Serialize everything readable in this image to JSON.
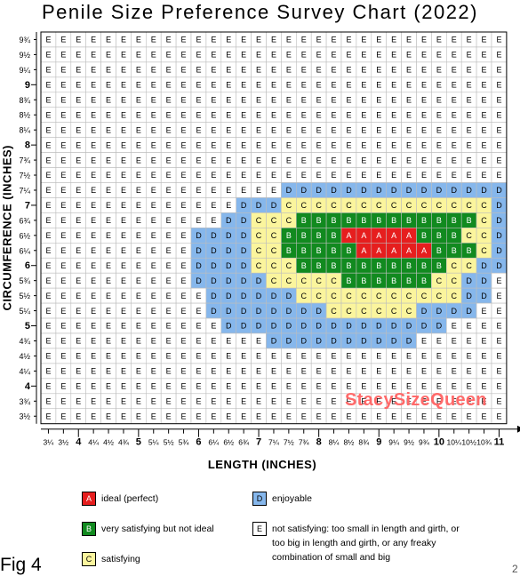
{
  "figure_label": "Fig 4",
  "page_number": "2",
  "watermark": "StacySizeQueen",
  "chart_data": {
    "type": "heatmap",
    "title": "Penile Size Preference Survey Chart (2022)",
    "xlabel": "LENGTH  (INCHES)",
    "ylabel": "CIRCUMFERENCE (INCHES)",
    "x_ticks": [
      "3¼",
      "3½",
      "4",
      "4¼",
      "4½",
      "4¾",
      "5",
      "5¼",
      "5½",
      "5¾",
      "6",
      "6¼",
      "6½",
      "6¾",
      "7",
      "7¼",
      "7½",
      "7¾",
      "8",
      "8¼",
      "8½",
      "8¾",
      "9",
      "9¼",
      "9½",
      "9¾",
      "10",
      "10¼",
      "10½",
      "10¾",
      "11"
    ],
    "y_ticks": [
      "9¾",
      "9½",
      "9¼",
      "9",
      "8¾",
      "8½",
      "8¼",
      "8",
      "7¾",
      "7½",
      "7¼",
      "7",
      "6¾",
      "6½",
      "6¼",
      "6",
      "5¾",
      "5½",
      "5¼",
      "5",
      "4¾",
      "4½",
      "4¼",
      "4",
      "3¾",
      "3½"
    ],
    "grid_rows": [
      "EEEEEEEEEEEEEEEEEEEEEEEEEEEEEEE",
      "EEEEEEEEEEEEEEEEEEEEEEEEEEEEEEE",
      "EEEEEEEEEEEEEEEEEEEEEEEEEEEEEEE",
      "EEEEEEEEEEEEEEEEEEEEEEEEEEEEEEE",
      "EEEEEEEEEEEEEEEEEEEEEEEEEEEEEEE",
      "EEEEEEEEEEEEEEEEEEEEEEEEEEEEEEE",
      "EEEEEEEEEEEEEEEEEEEEEEEEEEEEEEE",
      "EEEEEEEEEEEEEEEEEEEEEEEEEEEEEEE",
      "EEEEEEEEEEEEEEEEEEEEEEEEEEEEEEE",
      "EEEEEEEEEEEEEEEEEEEEEEEEEEEEEEE",
      "EEEEEEEEEEEEEEEEDDDDDDDDDDDDDDD",
      "EEEEEEEEEEEEEDDDCCCCCCCCCCCCCCD",
      "EEEEEEEEEEEEDDCCCBBBBBBBBBBBBCD",
      "EEEEEEEEEEDDDDCCBBBBAAAAABBBCCD",
      "EEEEEEEEEEDDDDCCBBBBBAAAAABBBCD",
      "EEEEEEEEEEDDDDCCCBBBBBBBBBBCCDD",
      "EEEEEEEEEEDDDDDCCCCCBBBBBBCCDDE",
      "EEEEEEEEEEEDDDDDDCCCCCCCCCCCDDE",
      "EEEEEEEEEEEDDDDDDDDCCCCCCDDDDEE",
      "EEEEEEEEEEEEDDDDDDDDDDDDDDDEEEE",
      "EEEEEEEEEEEEEEEDDDDDDDDDDEEEEEE",
      "EEEEEEEEEEEEEEEEEEEEEEEEEEEEEEE",
      "EEEEEEEEEEEEEEEEEEEEEEEEEEEEEEE",
      "EEEEEEEEEEEEEEEEEEEEEEEEEEEEEEE",
      "EEEEEEEEEEEEEEEEEEEEEEEEEEEEEEE",
      "EEEEEEEEEEEEEEEEEEEEEEEEEEEEEEE"
    ],
    "categories": {
      "A": {
        "label": "ideal (perfect)",
        "color": "#e61e1e"
      },
      "B": {
        "label": "very satisfying but not ideal",
        "color": "#118a1f"
      },
      "C": {
        "label": "satisfying",
        "color": "#fbf59d"
      },
      "D": {
        "label": "enjoyable",
        "color": "#86b7ec"
      },
      "E": {
        "label": "not satisfying: too small in length and girth, or too big in length and girth, or any freaky combination of small and big",
        "color": "#ffffff"
      }
    },
    "legend_position": "bottom"
  }
}
